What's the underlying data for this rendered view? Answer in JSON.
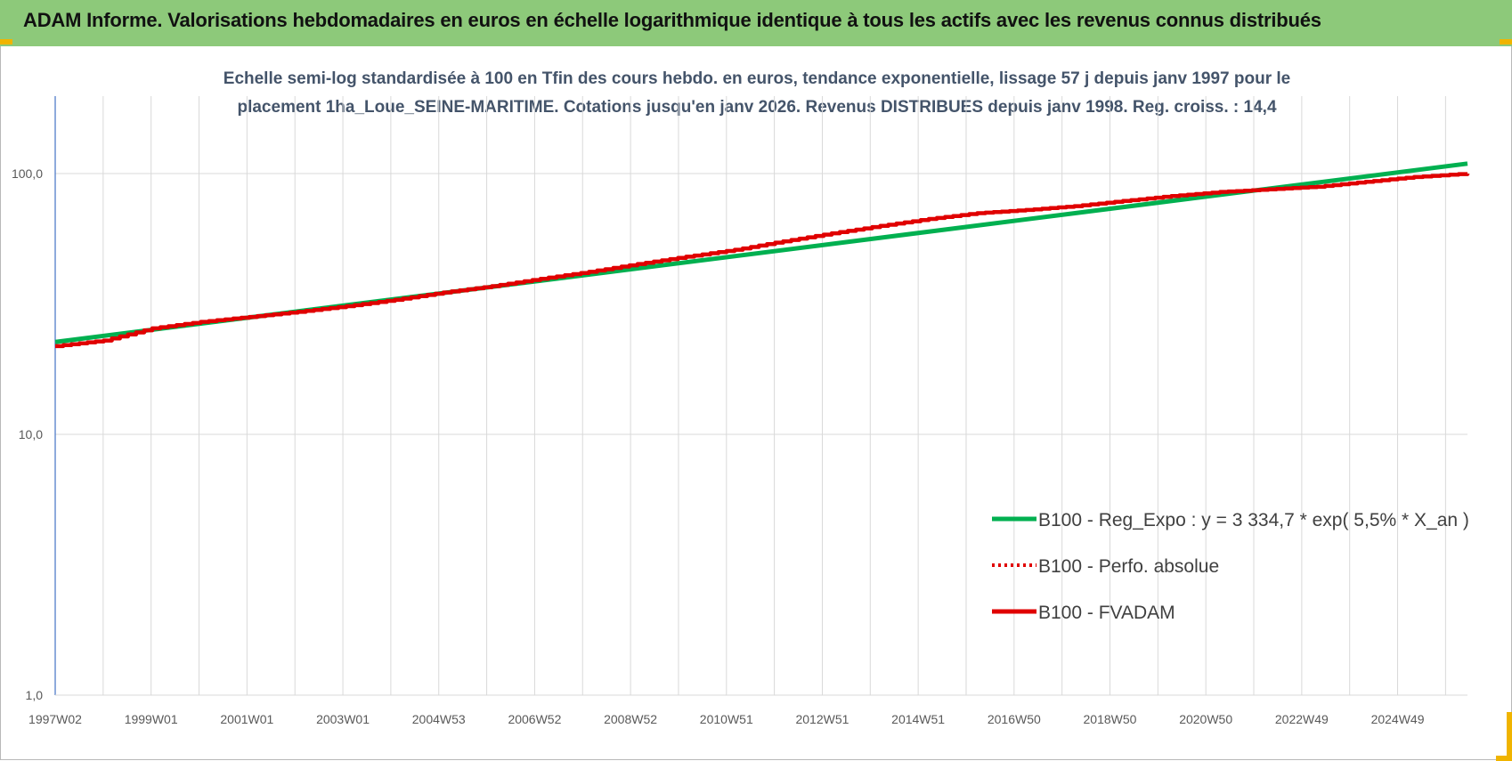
{
  "header": {
    "title": "ADAM Informe. Valorisations hebdomadaires en euros en échelle logarithmique identique à tous les actifs avec les revenus connus distribués"
  },
  "chart_data": {
    "type": "line",
    "title_line1": "Echelle semi-log standardisée à 100 en Tfin des cours hebdo. en euros, tendance exponentielle, lissage 57 j depuis janv 1997 pour le",
    "title_line2": "placement 1ha_Loue_SEINE-MARITIME.  Cotations jusqu'en janv 2026.  Revenus DISTRIBUES depuis janv 1998. Reg. croiss. : 14,4",
    "y_scale": "log",
    "ylim": [
      1,
      185
    ],
    "y_ticks": [
      "100,0",
      "10,0",
      "1,0"
    ],
    "y_tick_values": [
      100,
      10,
      1
    ],
    "x_range": [
      1997.0,
      2026.1
    ],
    "x_ticks": [
      "1997W02",
      "1999W01",
      "2001W01",
      "2003W01",
      "2004W53",
      "2006W52",
      "2008W52",
      "2010W51",
      "2012W51",
      "2014W51",
      "2016W50",
      "2018W50",
      "2020W50",
      "2022W49",
      "2024W49"
    ],
    "grid": true,
    "legend_position": "bottom-right",
    "series": [
      {
        "name": "B100 - Reg_Expo : y = 3 334,7 * exp( 5,5% *  X_an )",
        "color": "#00b050",
        "style": "solid",
        "x": [
          1997.0,
          2026.1
        ],
        "values": [
          22.6,
          109.2
        ]
      },
      {
        "name": "B100 - Perfo. absolue",
        "color": "#e00000",
        "style": "dotted",
        "x": [],
        "values": []
      },
      {
        "name": "B100 - FVADAM",
        "color": "#e00000",
        "style": "solid",
        "x": [
          1997.0,
          1998.0,
          1999.0,
          2000.0,
          2001.0,
          2002.0,
          2003.0,
          2004.0,
          2005.0,
          2006.0,
          2007.0,
          2008.0,
          2009.0,
          2010.0,
          2011.0,
          2012.0,
          2013.0,
          2014.0,
          2015.0,
          2016.0,
          2017.0,
          2018.0,
          2019.0,
          2020.0,
          2021.0,
          2022.0,
          2023.0,
          2024.0,
          2025.0,
          2026.1
        ],
        "values": [
          21.8,
          22.9,
          25.5,
          27.0,
          28.2,
          29.5,
          31.0,
          32.8,
          35.0,
          37.0,
          39.5,
          42.0,
          45.0,
          48.0,
          51.0,
          55.0,
          59.0,
          63.0,
          67.0,
          70.5,
          72.5,
          75.0,
          78.5,
          82.0,
          85.0,
          87.0,
          89.0,
          93.0,
          97.0,
          100.0
        ]
      }
    ]
  }
}
